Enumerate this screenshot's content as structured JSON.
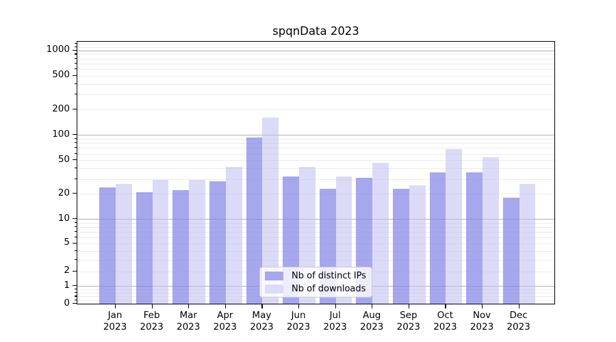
{
  "chart_data": {
    "type": "bar",
    "title": "spqnData 2023",
    "categories": [
      "Jan 2023",
      "Feb 2023",
      "Mar 2023",
      "Apr 2023",
      "May 2023",
      "Jun 2023",
      "Jul 2023",
      "Aug 2023",
      "Sep 2023",
      "Oct 2023",
      "Nov 2023",
      "Dec 2023"
    ],
    "series": [
      {
        "name": "Nb of distinct IPs",
        "values": [
          24,
          21,
          22,
          28,
          93,
          32,
          23,
          31,
          23,
          36,
          36,
          18
        ],
        "color": "rgba(133,133,231,0.72)",
        "legend_color": "#a7a7ee"
      },
      {
        "name": "Nb of downloads",
        "values": [
          26,
          29,
          29,
          42,
          160,
          42,
          32,
          47,
          25,
          68,
          54,
          26
        ],
        "color": "rgba(190,190,242,0.55)",
        "legend_color": "#dbdbf8"
      }
    ],
    "xlabel": "",
    "ylabel": "",
    "yscale": "asinh",
    "ytick_values": [
      0,
      1,
      2,
      5,
      10,
      20,
      50,
      100,
      200,
      500,
      1000
    ],
    "ytick_labels": [
      "0",
      "1",
      "2",
      "5",
      "10",
      "20",
      "50",
      "100",
      "200",
      "500",
      "1000"
    ],
    "minor_tick_values": [
      0.2,
      0.4,
      0.6,
      0.8,
      2,
      3,
      4,
      5,
      6,
      7,
      8,
      9,
      20,
      30,
      40,
      50,
      60,
      70,
      80,
      90,
      200,
      300,
      400,
      500,
      600,
      700,
      800,
      900,
      1100,
      1200
    ],
    "major_grid_values": [
      1,
      10,
      100,
      1000
    ],
    "ylim": [
      0,
      1270
    ],
    "grid": true,
    "legend_position": "lower center",
    "colors": {
      "background": "#ffffff",
      "spine": "#000000",
      "major_grid": "#b0b0b0",
      "minor_grid": "#ebebeb",
      "text": "#000000"
    }
  }
}
